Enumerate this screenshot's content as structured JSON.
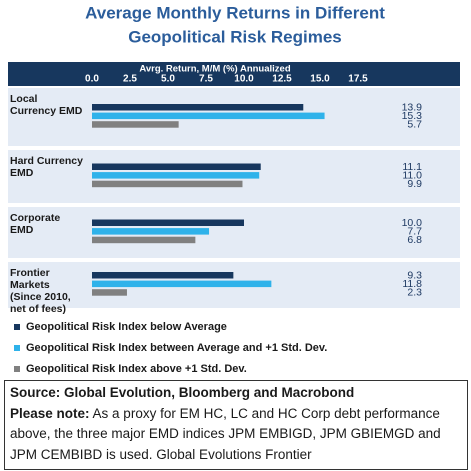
{
  "chart_data": {
    "type": "hbar",
    "title": "Average Monthly Returns in Different Geopolitical Risk Regimes",
    "x_label": "Avrg. Return, M/M (%) Annualized",
    "categories": [
      "Local Currency EMD",
      "Hard Currency EMD",
      "Corporate EMD",
      "Frontier Markets (Since 2010, net of fees)"
    ],
    "series": [
      {
        "name": "Geopolitical Risk Index below Average",
        "color": "#17375e",
        "values": [
          13.9,
          11.1,
          10,
          9.3
        ],
        "value_labels": [
          "13.9",
          "11.1",
          "10.0",
          "9.3"
        ]
      },
      {
        "name": "Geopolitical Risk Index between Average and +1 Std. Dev.",
        "color": "#2fb2ea",
        "values": [
          15.3,
          11,
          7.7,
          11.8
        ],
        "value_labels": [
          "15.3",
          "11.0",
          "7.7",
          "11.8"
        ]
      },
      {
        "name": "Geopolitical Risk Index above +1 Std. Dev.",
        "color": "#808080",
        "values": [
          5.7,
          9.9,
          6.8,
          2.3
        ],
        "value_labels": [
          "5.7",
          "9.9",
          "6.8",
          "2.3"
        ]
      }
    ],
    "xlim": [
      0,
      17.5
    ],
    "xticks": [
      {
        "value": 0,
        "label": "0.0"
      },
      2.5,
      {
        "value": 5,
        "label": "5.0"
      },
      7.5,
      {
        "value": 10,
        "label": "10.0"
      },
      12.5,
      {
        "value": 15,
        "label": "15.0"
      },
      17.5
    ],
    "legend": "bottom"
  },
  "source": "Source: Global Evolution, Bloomberg and Macrobond",
  "note": {
    "label": "Please note:",
    "text": "As a proxy for EM HC, LC and HC Corp debt performance above, the three major EMD indices JPM EMBIGD, JPM GBIEMGD and JPM CEMBIBD is used. Global Evolutions Frontier"
  }
}
